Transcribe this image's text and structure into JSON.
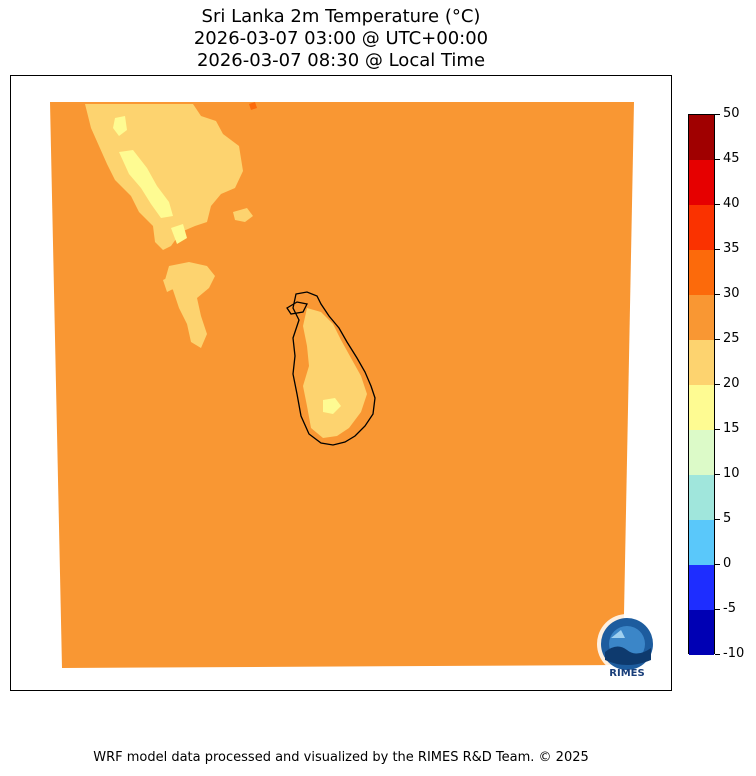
{
  "title": {
    "line1": "Sri Lanka 2m Temperature (°C)",
    "line2": "2026-03-07 03:00 @ UTC+00:00",
    "line3": "2026-03-07 08:30 @ Local Time"
  },
  "map": {
    "field": "2m Temperature",
    "colors": {
      "band_25_30": "#f99733",
      "band_20_25": "#fdd36f",
      "band_15_20": "#fefb92",
      "band_30_35": "#fc6a0b",
      "coastline": "#000000"
    },
    "logo": {
      "text": "RIMES",
      "icon": "rimes-logo-icon"
    }
  },
  "colorbar": {
    "levels": [
      -10,
      -5,
      0,
      5,
      10,
      15,
      20,
      25,
      30,
      35,
      40,
      45,
      50
    ],
    "tick_labels": [
      "-10",
      "-5",
      "0",
      "5",
      "10",
      "15",
      "20",
      "25",
      "30",
      "35",
      "40",
      "45",
      "50"
    ],
    "colors": [
      "#0000b4",
      "#1e2dff",
      "#5ac8fa",
      "#a0e6dc",
      "#dcfac8",
      "#fefb92",
      "#fdd36f",
      "#f99733",
      "#fc6a0b",
      "#fa3200",
      "#e60000",
      "#a00000"
    ]
  },
  "footer": {
    "credit": "WRF model data processed and visualized by the RIMES R&D Team. © 2025"
  }
}
